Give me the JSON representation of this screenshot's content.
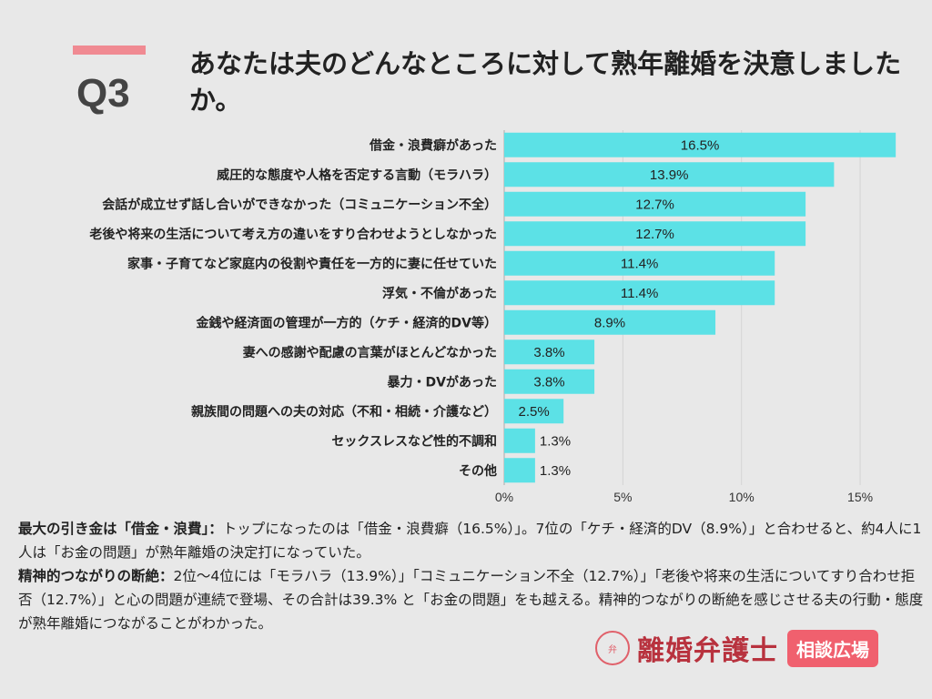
{
  "header": {
    "q_number": "Q3",
    "title": "あなたは夫のどんなところに対して熟年離婚を決意しましたか。"
  },
  "colors": {
    "bar": "#5ce1e6",
    "accent": "#f08a92",
    "logo": "#b8323e",
    "badge": "#f0606e"
  },
  "chart_data": {
    "type": "bar",
    "orientation": "horizontal",
    "categories": [
      "借金・浪費癖があった",
      "威圧的な態度や人格を否定する言動（モラハラ）",
      "会話が成立せず話し合いができなかった（コミュニケーション不全）",
      "老後や将来の生活について考え方の違いをすり合わせようとしなかった",
      "家事・子育てなど家庭内の役割や責任を一方的に妻に任せていた",
      "浮気・不倫があった",
      "金銭や経済面の管理が一方的（ケチ・経済的DV等）",
      "妻への感謝や配慮の言葉がほとんどなかった",
      "暴力・DVがあった",
      "親族間の問題への夫の対応（不和・相続・介護など）",
      "セックスレスなど性的不調和",
      "その他"
    ],
    "values": [
      16.5,
      13.9,
      12.7,
      12.7,
      11.4,
      11.4,
      8.9,
      3.8,
      3.8,
      2.5,
      1.3,
      1.3
    ],
    "data_labels": [
      "16.5%",
      "13.9%",
      "12.7%",
      "12.7%",
      "11.4%",
      "11.4%",
      "8.9%",
      "3.8%",
      "3.8%",
      "2.5%",
      "1.3%",
      "1.3%"
    ],
    "xticks": [
      0,
      5,
      10,
      15
    ],
    "xtick_labels": [
      "0%",
      "5%",
      "10%",
      "15%"
    ],
    "xlim": [
      0,
      16.5
    ],
    "grid": "vertical"
  },
  "description": {
    "p1_heading": "最大の引き金は「借金・浪費」：",
    "p1_text": "トップになったのは「借金・浪費癖（16.5%）」。7位の「ケチ・経済的DV（8.9%）」と合わせると、約4人に1人は「お金の問題」が熟年離婚の決定打になっていた。",
    "p2_heading": "精神的つながりの断絶：",
    "p2_text": "2位〜4位には「モラハラ（13.9%）」「コミュニケーション不全（12.7%）」「老後や将来の生活についてすり合わせ拒否（12.7%）」と心の問題が連続で登場、その合計は39.3% と「お金の問題」をも越える。精神的つながりの断絶を感じさせる夫の行動・態度が熟年離婚につながることがわかった。"
  },
  "logo": {
    "name": "離婚弁護士",
    "badge": "相談広場",
    "mark": "弁"
  }
}
